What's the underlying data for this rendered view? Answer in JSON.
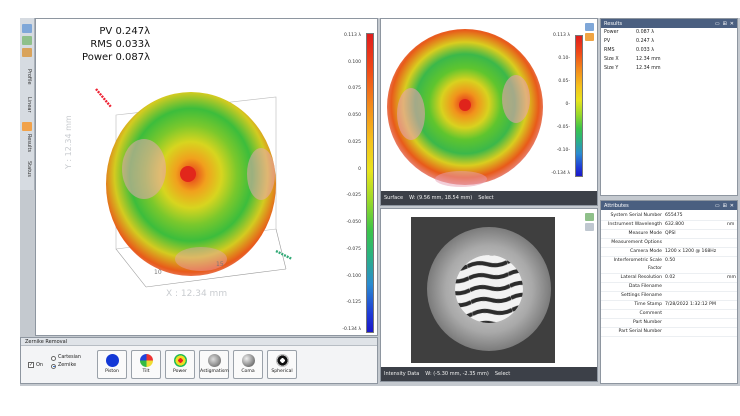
{
  "left_toolbar": {
    "labels": [
      "Profile",
      "Linear",
      "Results",
      "Status"
    ]
  },
  "main3d": {
    "stats": {
      "pv": "PV 0.247λ",
      "rms": "RMS 0.033λ",
      "power": "Power 0.087λ"
    },
    "y_axis_label": "Y : 12.34 mm",
    "x_axis_label": "X : 12.34 mm",
    "x_ticks": [
      "10",
      "15"
    ],
    "colorbar_ticks": [
      "0.113 λ",
      "0.100",
      "0.075",
      "0.050",
      "0.025",
      "0",
      "-0.025",
      "-0.050",
      "-0.075",
      "-0.100",
      "-0.125",
      "-0.134 λ"
    ]
  },
  "surface_panel": {
    "colorbar_ticks": [
      "0.113 λ",
      "0.10-",
      "0.05-",
      "0-",
      "-0.05-",
      "-0.10-",
      "-0.134 λ"
    ],
    "status": {
      "name": "Surface",
      "coords": "W: (9.56 mm, 18.54 mm)",
      "select": "Select"
    }
  },
  "intensity_panel": {
    "status": {
      "name": "Intensity Data",
      "coords": "W: (-5.30 mm, -2.35 mm)",
      "select": "Select"
    }
  },
  "results": {
    "title": "Results",
    "rows": [
      {
        "k": "Power",
        "v": "0.087 λ"
      },
      {
        "k": "PV",
        "v": "0.247 λ"
      },
      {
        "k": "RMS",
        "v": "0.033 λ"
      },
      {
        "k": "Size X",
        "v": "12.34 mm"
      },
      {
        "k": "Size Y",
        "v": "12.34 mm"
      }
    ]
  },
  "attributes": {
    "title": "Attributes",
    "rows": [
      {
        "k": "System Serial Number",
        "v": "655475",
        "u": ""
      },
      {
        "k": "Instrument Wavelength",
        "v": "632.800",
        "u": "nm"
      },
      {
        "k": "Measure Mode",
        "v": "QPSI",
        "u": ""
      },
      {
        "k": "Measurement Options",
        "v": "",
        "u": ""
      },
      {
        "k": "Camera Mode",
        "v": "1200 x 1200 @ 168Hz",
        "u": ""
      },
      {
        "k": "Interferometric Scale Factor",
        "v": "0.50",
        "u": ""
      },
      {
        "k": "Lateral Resolution",
        "v": "0.02",
        "u": "mm"
      },
      {
        "k": "Data Filename",
        "v": "",
        "u": ""
      },
      {
        "k": "Settings Filename",
        "v": "",
        "u": ""
      },
      {
        "k": "Time Stamp",
        "v": "7/28/2022 1:32:12 PM",
        "u": ""
      },
      {
        "k": "Comment",
        "v": "",
        "u": ""
      },
      {
        "k": "Part Number",
        "v": "",
        "u": ""
      },
      {
        "k": "Part Serial Number",
        "v": "",
        "u": ""
      }
    ]
  },
  "zernike": {
    "title": "Zernike Removal",
    "on_label": "On",
    "radio_cartesian": "Cartesian",
    "radio_zernike": "Zernike",
    "buttons": [
      {
        "label": "Piston",
        "icon": "piston-icon"
      },
      {
        "label": "Tilt",
        "icon": "tilt-icon"
      },
      {
        "label": "Power",
        "icon": "power-icon"
      },
      {
        "label": "Astigmatism",
        "icon": "astigmatism-icon"
      },
      {
        "label": "Coma",
        "icon": "coma-icon"
      },
      {
        "label": "Spherical",
        "icon": "spherical-icon"
      }
    ]
  },
  "colors": {
    "accent": "#4a5f80",
    "statusbar": "#3c4048"
  }
}
